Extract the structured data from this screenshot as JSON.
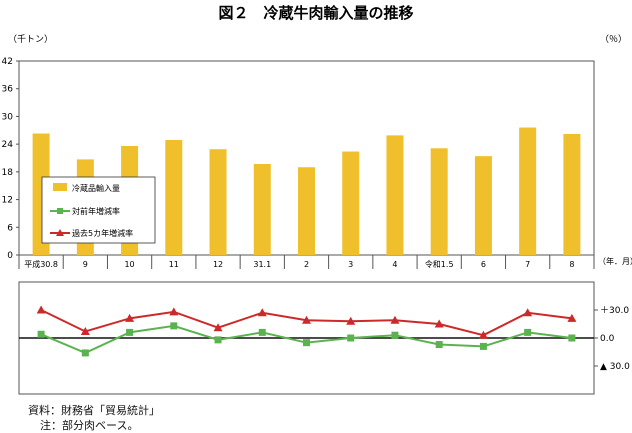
{
  "chart_data": {
    "type": "bar+line",
    "title": "図２　冷蔵牛肉輸入量の推移",
    "categories": [
      "平成30.8",
      "9",
      "10",
      "11",
      "12",
      "31.1",
      "2",
      "3",
      "4",
      "令和1.5",
      "6",
      "7",
      "8"
    ],
    "x_unit_label": "（年．月）",
    "top_panel": {
      "ylabel": "（千トン）",
      "ylim": [
        0,
        42
      ],
      "yticks": [
        "0",
        "6",
        "12",
        "18",
        "24",
        "30",
        "36",
        "42"
      ],
      "grid": false,
      "series": [
        {
          "name": "冷蔵品輸入量",
          "color": "#f0bf2c",
          "values": [
            26.3,
            20.7,
            23.6,
            24.9,
            22.9,
            19.7,
            19.0,
            22.4,
            25.9,
            23.1,
            21.4,
            27.6,
            26.2
          ]
        }
      ]
    },
    "bottom_panel": {
      "ylabel": "（％）",
      "ylim": [
        -60,
        60
      ],
      "yticks": [
        "＋30.0",
        "0.0",
        "▲ 30.0"
      ],
      "series": [
        {
          "name": "対前年増減率",
          "color": "#5bb34f",
          "marker": "square",
          "values": [
            4,
            -16,
            6,
            13,
            -2,
            6,
            -5,
            0,
            3,
            -7,
            -9,
            6,
            0
          ]
        },
        {
          "name": "過去5カ年増減率",
          "color": "#cc2a2a",
          "marker": "triangle",
          "values": [
            30,
            7,
            21,
            28,
            11,
            27,
            19,
            18,
            19,
            15,
            3,
            27,
            21
          ]
        }
      ]
    },
    "legend_position": "left, inside top panel"
  },
  "source": "資料：財務省「貿易統計」",
  "note": "注：部分肉ベース。"
}
